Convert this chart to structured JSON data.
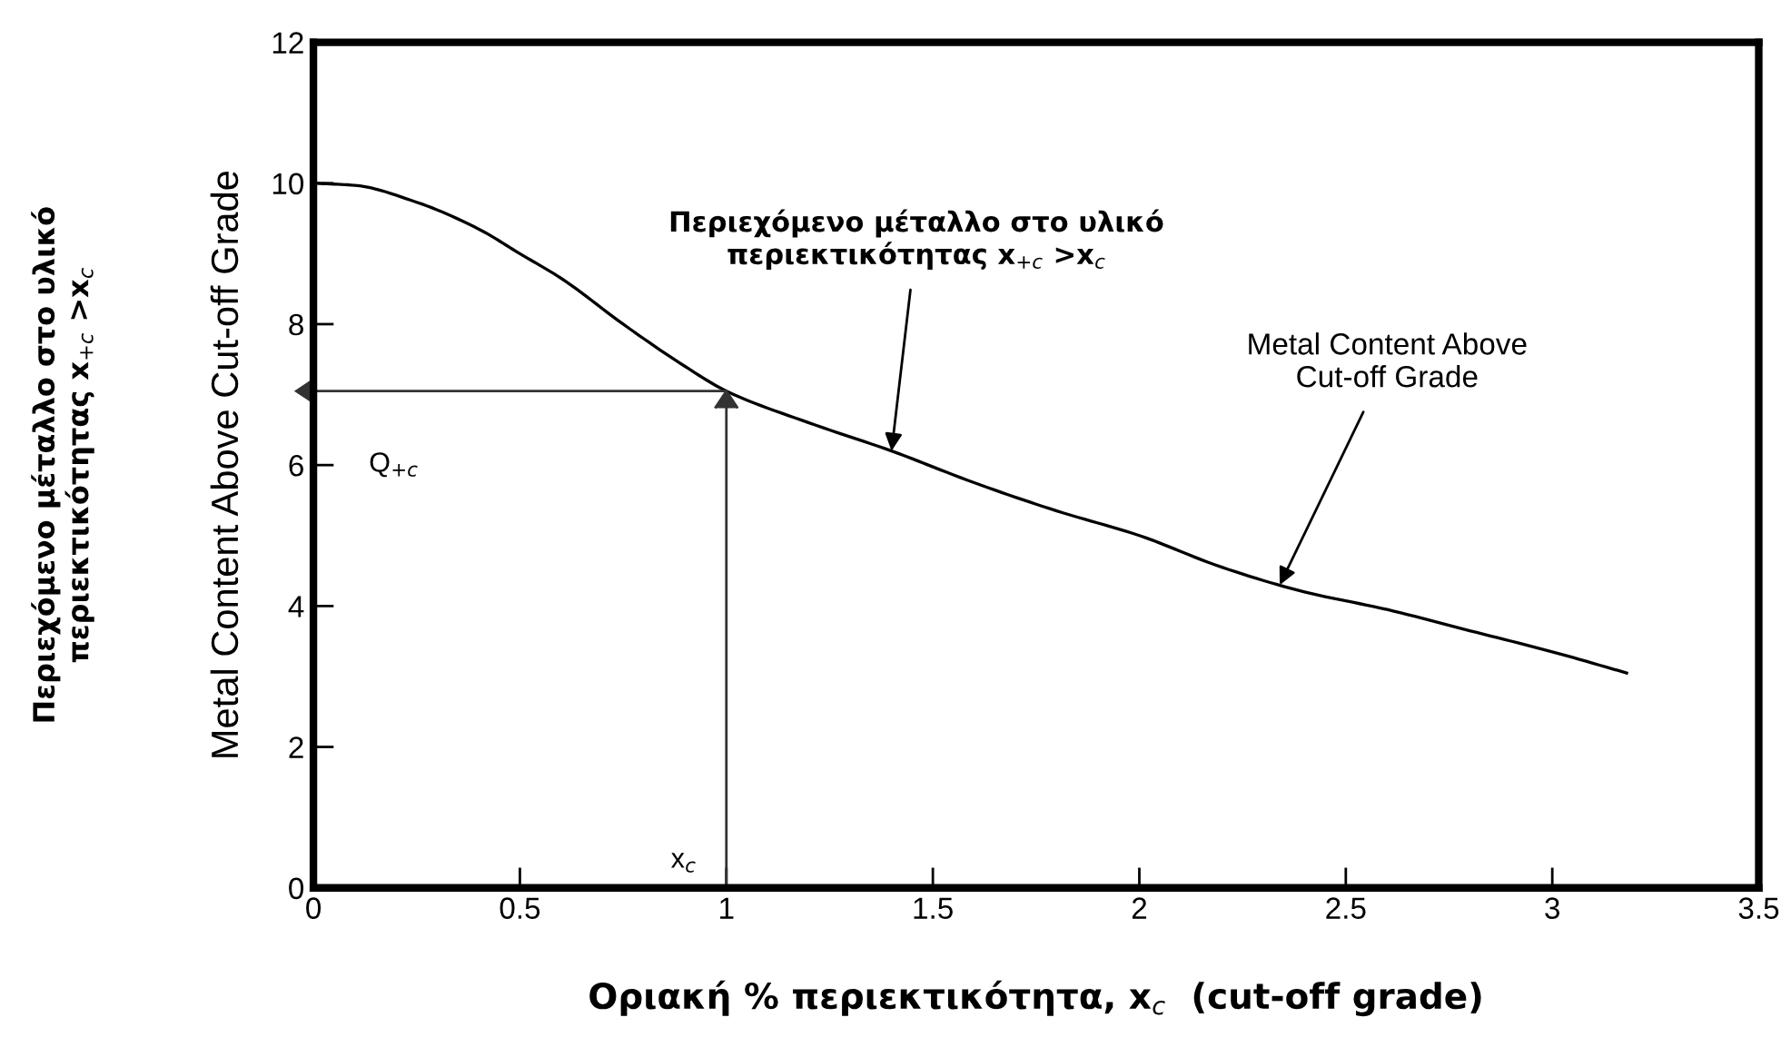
{
  "chart_data": {
    "type": "line",
    "xlabel": "Οριακή % περιεκτικότητα, x$_{c}$  (cut-off grade)",
    "ylabel": "Metal Content Above Cut-off Grade",
    "x": [
      0,
      0.1,
      0.25,
      0.4,
      0.5,
      0.6,
      0.75,
      0.9,
      1.0,
      1.2,
      1.4,
      1.6,
      1.8,
      2.0,
      2.2,
      2.4,
      2.6,
      2.8,
      3.0,
      3.18
    ],
    "series": [
      {
        "color": "#000000",
        "values": [
          10,
          9.97,
          9.73,
          9.35,
          9.0,
          8.65,
          8.0,
          7.4,
          7.05,
          6.6,
          6.2,
          5.75,
          5.35,
          5.0,
          4.55,
          4.2,
          3.95,
          3.65,
          3.35,
          3.05
        ]
      }
    ],
    "annotations": [
      {
        "text": "Περιεχόμενο μέταλλο στο υλικό\nπεριεκτικότητας x$_{+c}$ >x$_{c}$",
        "x": 1.4,
        "y": 6.2
      },
      {
        "text": "Metal Content Above\nCut-off Grade",
        "x": 2.34,
        "y": 4.3
      },
      "Περιεχόμενο μέταλλο στο υλικό\nπεριεκτικότητας x$_{+c}$ >x$_{c}$"
    ],
    "ref_lines": [
      {
        "axis": "x",
        "value": 1,
        "label": "x$_{c}$",
        "color": "#333333"
      },
      {
        "axis": "y",
        "value": 7.05,
        "label": "Q$_{+c}$",
        "color": "#333333"
      }
    ],
    "xlim": [
      0,
      3.5
    ],
    "ylim": [
      0,
      12
    ],
    "xticks": [
      0,
      0.5,
      1,
      1.5,
      2,
      2.5,
      3,
      3.5
    ],
    "yticks": [
      0,
      2,
      4,
      6,
      8,
      10,
      12
    ],
    "grid": false,
    "legend": false,
    "marker": "none",
    "line_style": "solid"
  }
}
